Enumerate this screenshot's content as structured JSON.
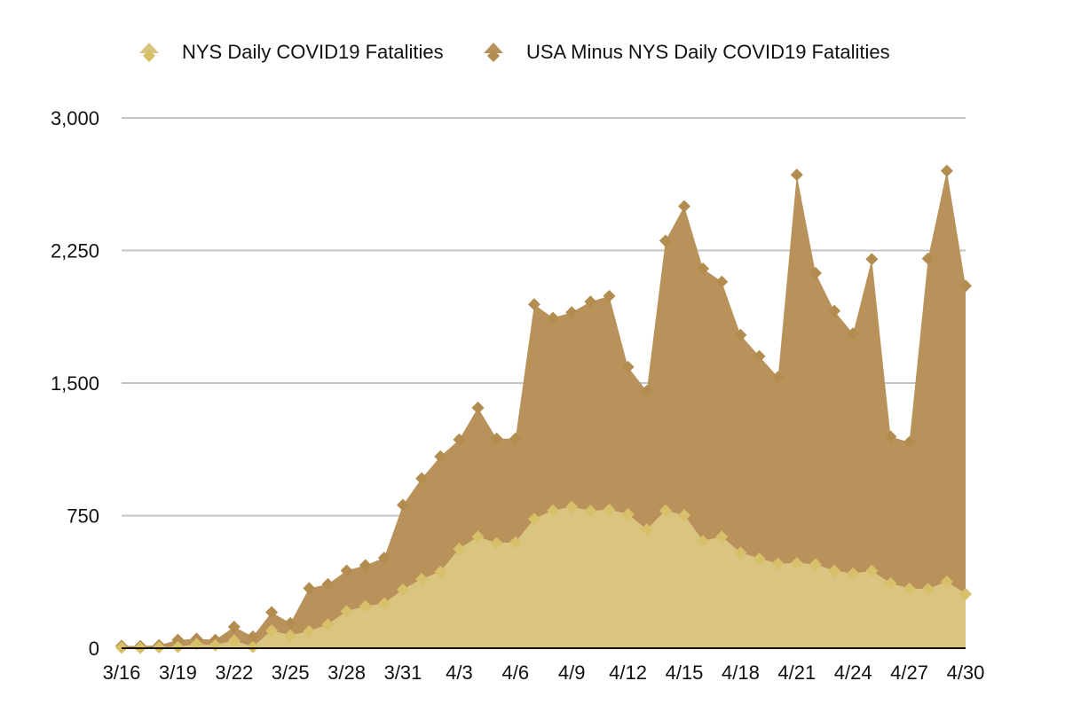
{
  "chart_data": {
    "type": "area",
    "stacked": true,
    "title": "",
    "xlabel": "",
    "ylabel": "",
    "ylim": [
      0,
      3000
    ],
    "yticks": [
      0,
      750,
      1500,
      2250,
      3000
    ],
    "ytick_labels": [
      "0",
      "750",
      "1,500",
      "2,250",
      "3,000"
    ],
    "grid": true,
    "legend_position": "top",
    "x": [
      "3/16",
      "3/17",
      "3/18",
      "3/19",
      "3/20",
      "3/21",
      "3/22",
      "3/23",
      "3/24",
      "3/25",
      "3/26",
      "3/27",
      "3/28",
      "3/29",
      "3/30",
      "3/31",
      "4/1",
      "4/2",
      "4/3",
      "4/4",
      "4/5",
      "4/6",
      "4/7",
      "4/8",
      "4/9",
      "4/10",
      "4/11",
      "4/12",
      "4/13",
      "4/14",
      "4/15",
      "4/16",
      "4/17",
      "4/18",
      "4/19",
      "4/20",
      "4/21",
      "4/22",
      "4/23",
      "4/24",
      "4/25",
      "4/26",
      "4/27",
      "4/28",
      "4/29",
      "4/30"
    ],
    "xtick_labels": [
      "3/16",
      "3/19",
      "3/22",
      "3/25",
      "3/28",
      "3/31",
      "4/3",
      "4/6",
      "4/9",
      "4/12",
      "4/15",
      "4/18",
      "4/21",
      "4/24",
      "4/27",
      "4/30"
    ],
    "series": [
      {
        "name": "NYS Daily COVID19 Fatalities",
        "color": "#d9c480",
        "marker_color": "#d8bf6a",
        "values": [
          3,
          2,
          5,
          7,
          23,
          17,
          43,
          7,
          100,
          72,
          96,
          134,
          209,
          237,
          253,
          332,
          391,
          432,
          562,
          630,
          594,
          599,
          731,
          779,
          799,
          777,
          783,
          758,
          671,
          778,
          752,
          606,
          630,
          540,
          507,
          478,
          481,
          474,
          438,
          422,
          437,
          367,
          337,
          335,
          376,
          306
        ]
      },
      {
        "name": "USA Minus NYS Daily COVID19 Fatalities",
        "color": "#b8925a",
        "marker_color": "#b38c50",
        "values": [
          10,
          10,
          12,
          40,
          30,
          30,
          78,
          59,
          103,
          70,
          243,
          228,
          230,
          232,
          258,
          478,
          570,
          653,
          618,
          730,
          591,
          586,
          1214,
          1090,
          1101,
          1183,
          1209,
          833,
          784,
          1527,
          1748,
          1541,
          1443,
          1232,
          1145,
          1055,
          2197,
          1648,
          1470,
          1358,
          1764,
          830,
          828,
          1869,
          2325,
          1744
        ]
      }
    ]
  }
}
